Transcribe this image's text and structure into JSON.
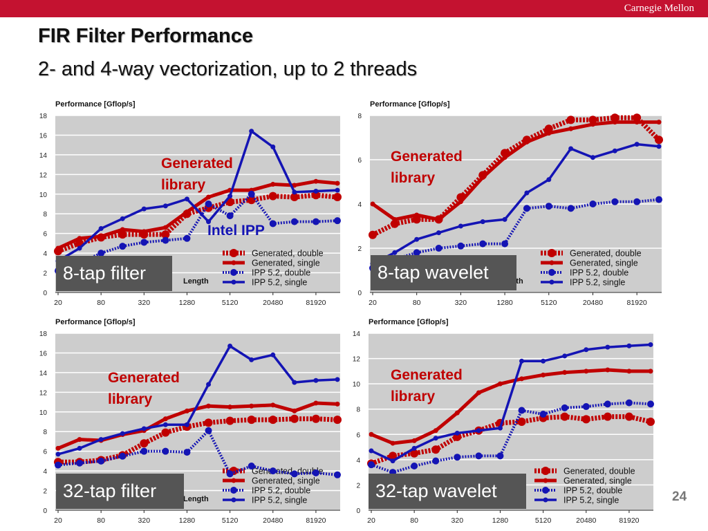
{
  "header": {
    "brand": "Carnegie Mellon",
    "title": "FIR Filter Performance",
    "subtitle": "2- and 4-way vectorization, up to 2 threads",
    "page_number": "24"
  },
  "colors": {
    "red": "#c00000",
    "blue": "#1414b4",
    "bar": "#c41230"
  },
  "chart_data": [
    {
      "type": "line",
      "label": "8-tap filter",
      "ylabel": "Performance [Gflop/s]",
      "xlabel": "Length",
      "ylim": [
        0,
        18
      ],
      "grid": true,
      "legend": "bottom-right",
      "x": [
        20,
        40,
        80,
        160,
        320,
        640,
        1280,
        2560,
        5120,
        10240,
        20480,
        40960,
        81920,
        163840
      ],
      "xtick_labels": [
        "20",
        "80",
        "320",
        "1280",
        "5120",
        "20480",
        "81920"
      ],
      "annotations": [
        {
          "text": "Generated library",
          "color": "red"
        },
        {
          "text": "Intel IPP",
          "color": "blue"
        }
      ],
      "series": [
        {
          "name": "Generated, double",
          "values": [
            4.2,
            5.0,
            5.6,
            5.9,
            5.9,
            5.9,
            8.0,
            8.6,
            9.2,
            9.4,
            9.8,
            9.7,
            9.9,
            9.7
          ]
        },
        {
          "name": "Generated, single",
          "values": [
            4.5,
            5.5,
            5.7,
            6.4,
            6.2,
            6.6,
            8.2,
            9.7,
            10.4,
            10.4,
            11.0,
            10.9,
            11.3,
            11.1
          ]
        },
        {
          "name": "IPP 5.2, double",
          "values": [
            2.2,
            3.0,
            4.0,
            4.7,
            5.1,
            5.3,
            5.5,
            9.0,
            7.8,
            10.0,
            7.0,
            7.2,
            7.2,
            7.3
          ]
        },
        {
          "name": "IPP 5.2, single",
          "values": [
            3.2,
            4.5,
            6.5,
            7.5,
            8.5,
            8.8,
            9.5,
            7.2,
            9.8,
            16.4,
            14.8,
            10.2,
            10.3,
            10.4
          ]
        }
      ]
    },
    {
      "type": "line",
      "label": "8-tap wavelet",
      "ylabel": "Performance [Gflop/s]",
      "xlabel": "Length",
      "ylim": [
        0,
        8
      ],
      "grid": true,
      "legend": "bottom-right",
      "x": [
        20,
        40,
        80,
        160,
        320,
        640,
        1280,
        2560,
        5120,
        10240,
        20480,
        40960,
        81920,
        163840
      ],
      "xtick_labels": [
        "20",
        "80",
        "320",
        "1280",
        "5120",
        "20480",
        "81920"
      ],
      "annotations": [
        {
          "text": "Generated library",
          "color": "red"
        }
      ],
      "series": [
        {
          "name": "Generated, double",
          "values": [
            2.6,
            3.1,
            3.3,
            3.3,
            4.3,
            5.3,
            6.3,
            6.9,
            7.4,
            7.8,
            7.8,
            7.9,
            7.9,
            6.9
          ]
        },
        {
          "name": "Generated, single",
          "values": [
            4.0,
            3.3,
            3.5,
            3.3,
            4.1,
            5.2,
            6.1,
            6.8,
            7.2,
            7.4,
            7.6,
            7.7,
            7.7,
            7.7
          ]
        },
        {
          "name": "IPP 5.2, double",
          "values": [
            1.1,
            1.5,
            1.8,
            2.0,
            2.1,
            2.2,
            2.2,
            3.8,
            3.9,
            3.8,
            4.0,
            4.1,
            4.1,
            4.2
          ]
        },
        {
          "name": "IPP 5.2, single",
          "values": [
            1.3,
            1.8,
            2.4,
            2.7,
            3.0,
            3.2,
            3.3,
            4.5,
            5.1,
            6.5,
            6.1,
            6.4,
            6.7,
            6.6
          ]
        }
      ]
    },
    {
      "type": "line",
      "label": "32-tap filter",
      "ylabel": "Performance [Gflop/s]",
      "xlabel": "Length",
      "ylim": [
        0,
        18
      ],
      "grid": true,
      "legend": "bottom-right",
      "x": [
        20,
        40,
        80,
        160,
        320,
        640,
        1280,
        2560,
        5120,
        10240,
        20480,
        40960,
        81920,
        163840
      ],
      "xtick_labels": [
        "20",
        "80",
        "320",
        "1280",
        "5120",
        "20480",
        "81920"
      ],
      "annotations": [
        {
          "text": "Generated library",
          "color": "red"
        }
      ],
      "series": [
        {
          "name": "Generated, double",
          "values": [
            4.9,
            4.9,
            5.1,
            5.6,
            6.8,
            7.9,
            8.5,
            8.9,
            9.1,
            9.2,
            9.2,
            9.3,
            9.3,
            9.2
          ]
        },
        {
          "name": "Generated, single",
          "values": [
            6.3,
            7.2,
            7.1,
            7.7,
            8.1,
            9.3,
            10.1,
            10.6,
            10.5,
            10.6,
            10.7,
            10.1,
            10.9,
            10.8
          ]
        },
        {
          "name": "IPP 5.2, double",
          "values": [
            4.6,
            4.8,
            5.0,
            5.5,
            6.0,
            6.0,
            5.9,
            8.1,
            3.7,
            4.5,
            4.0,
            3.7,
            3.8,
            3.6
          ]
        },
        {
          "name": "IPP 5.2, single",
          "values": [
            5.7,
            6.3,
            7.2,
            7.8,
            8.3,
            8.7,
            8.7,
            12.8,
            16.7,
            15.3,
            15.8,
            13.0,
            13.2,
            13.3
          ]
        }
      ]
    },
    {
      "type": "line",
      "label": "32-tap wavelet",
      "ylabel": "Performance [Gflop/s]",
      "xlabel": "Length",
      "ylim": [
        0,
        14
      ],
      "grid": true,
      "legend": "bottom-right",
      "x": [
        20,
        40,
        80,
        160,
        320,
        640,
        1280,
        2560,
        5120,
        10240,
        20480,
        40960,
        81920,
        163840
      ],
      "xtick_labels": [
        "20",
        "80",
        "320",
        "1280",
        "5120",
        "20480",
        "81920"
      ],
      "annotations": [
        {
          "text": "Generated library",
          "color": "red"
        }
      ],
      "series": [
        {
          "name": "Generated, double",
          "values": [
            3.7,
            4.3,
            4.5,
            4.8,
            5.8,
            6.3,
            6.9,
            7.0,
            7.3,
            7.4,
            7.2,
            7.4,
            7.4,
            7.0
          ]
        },
        {
          "name": "Generated, single",
          "values": [
            6.0,
            5.3,
            5.5,
            6.3,
            7.7,
            9.3,
            10.0,
            10.4,
            10.7,
            10.9,
            11.0,
            11.1,
            11.0,
            11.0
          ]
        },
        {
          "name": "IPP 5.2, double",
          "values": [
            3.6,
            3.0,
            3.5,
            3.9,
            4.2,
            4.3,
            4.3,
            7.9,
            7.6,
            8.1,
            8.2,
            8.4,
            8.5,
            8.4
          ]
        },
        {
          "name": "IPP 5.2, single",
          "values": [
            4.7,
            3.9,
            4.9,
            5.7,
            6.1,
            6.3,
            6.5,
            11.8,
            11.8,
            12.2,
            12.7,
            12.9,
            13.0,
            13.1
          ]
        }
      ]
    }
  ]
}
